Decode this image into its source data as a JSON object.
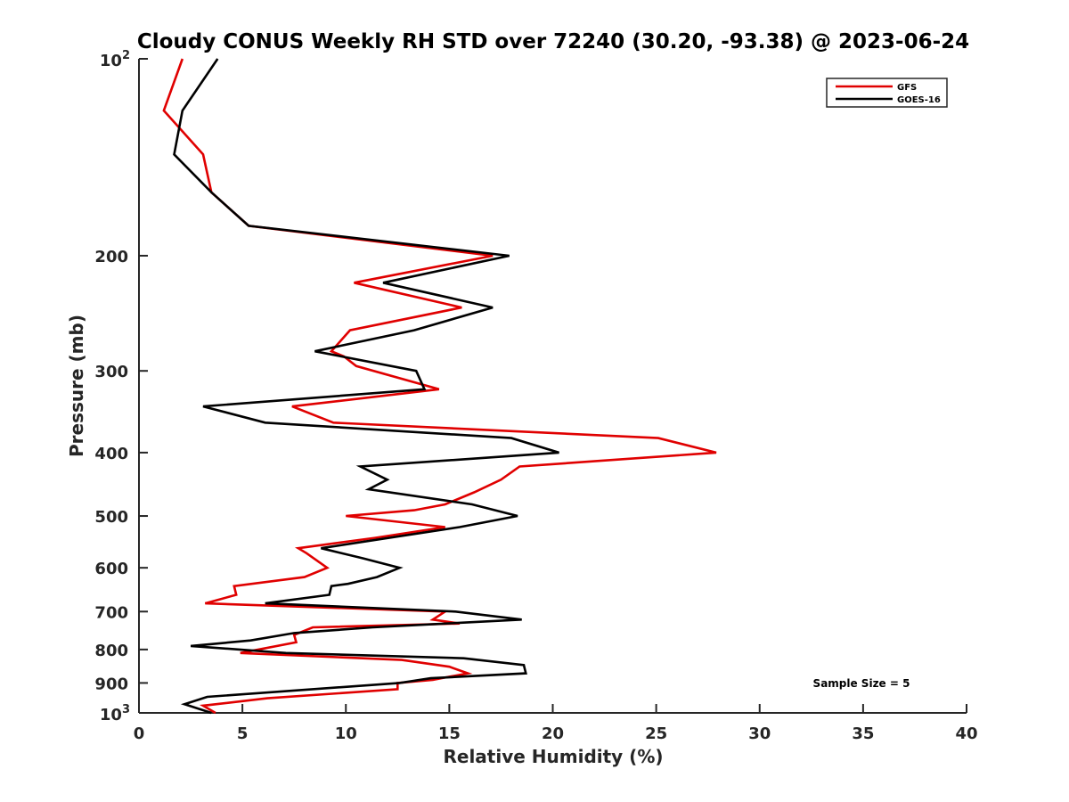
{
  "chart_data": {
    "type": "line",
    "title": "Cloudy CONUS Weekly RH STD over 72240 (30.20, -93.38) @ 2023-06-24",
    "xlabel": "Relative Humidity (%)",
    "ylabel": "Pressure (mb)",
    "xlim": [
      0,
      40
    ],
    "ylim": [
      100,
      1000
    ],
    "yscale": "log",
    "yreversed": true,
    "grid": false,
    "xticks": [
      "0",
      "5",
      "10",
      "15",
      "20",
      "25",
      "30",
      "35",
      "40"
    ],
    "xtick_values": [
      0,
      5,
      10,
      15,
      20,
      25,
      30,
      35,
      40
    ],
    "yticks": [
      {
        "value": 100,
        "base": "10",
        "exp": "2"
      },
      {
        "value": 200,
        "label": "200"
      },
      {
        "value": 300,
        "label": "300"
      },
      {
        "value": 400,
        "label": "400"
      },
      {
        "value": 500,
        "label": "500"
      },
      {
        "value": 600,
        "label": "600"
      },
      {
        "value": 700,
        "label": "700"
      },
      {
        "value": 800,
        "label": "800"
      },
      {
        "value": 900,
        "label": "900"
      },
      {
        "value": 1000,
        "base": "10",
        "exp": "3"
      }
    ],
    "legend_position": "top-right",
    "annotation": "Sample Size = 5",
    "series": [
      {
        "name": "GFS",
        "color": "#e00000",
        "points": [
          [
            2.1,
            100
          ],
          [
            1.2,
            120
          ],
          [
            3.1,
            140
          ],
          [
            3.5,
            160
          ],
          [
            5.3,
            180
          ],
          [
            17.1,
            200
          ],
          [
            10.4,
            220
          ],
          [
            15.6,
            240
          ],
          [
            10.2,
            260
          ],
          [
            9.3,
            280
          ],
          [
            9.9,
            285
          ],
          [
            10.5,
            295
          ],
          [
            14.5,
            320
          ],
          [
            7.4,
            340
          ],
          [
            9.4,
            360
          ],
          [
            25.1,
            380
          ],
          [
            27.9,
            400
          ],
          [
            18.4,
            420
          ],
          [
            17.5,
            440
          ],
          [
            16.2,
            460
          ],
          [
            14.8,
            480
          ],
          [
            13.3,
            490
          ],
          [
            10.0,
            500
          ],
          [
            14.8,
            520
          ],
          [
            11.4,
            540
          ],
          [
            7.7,
            560
          ],
          [
            8.1,
            570
          ],
          [
            9.1,
            600
          ],
          [
            8.0,
            620
          ],
          [
            4.6,
            640
          ],
          [
            4.7,
            660
          ],
          [
            3.2,
            680
          ],
          [
            14.8,
            700
          ],
          [
            14.2,
            720
          ],
          [
            15.5,
            730
          ],
          [
            8.4,
            740
          ],
          [
            7.5,
            760
          ],
          [
            7.6,
            780
          ],
          [
            4.9,
            810
          ],
          [
            12.7,
            830
          ],
          [
            15.0,
            850
          ],
          [
            15.9,
            870
          ],
          [
            14.2,
            890
          ],
          [
            12.5,
            900
          ],
          [
            12.5,
            920
          ],
          [
            6.2,
            950
          ],
          [
            3.1,
            975
          ],
          [
            3.7,
            1000
          ]
        ]
      },
      {
        "name": "GOES-16",
        "color": "#000000",
        "points": [
          [
            3.8,
            100
          ],
          [
            2.1,
            120
          ],
          [
            1.7,
            140
          ],
          [
            3.5,
            160
          ],
          [
            5.3,
            180
          ],
          [
            17.9,
            200
          ],
          [
            11.8,
            220
          ],
          [
            17.1,
            240
          ],
          [
            13.3,
            260
          ],
          [
            8.5,
            280
          ],
          [
            13.4,
            300
          ],
          [
            13.8,
            320
          ],
          [
            3.1,
            340
          ],
          [
            6.1,
            360
          ],
          [
            18.0,
            380
          ],
          [
            20.3,
            400
          ],
          [
            10.7,
            420
          ],
          [
            12.0,
            440
          ],
          [
            11.1,
            455
          ],
          [
            16.1,
            480
          ],
          [
            18.3,
            500
          ],
          [
            15.5,
            520
          ],
          [
            8.8,
            560
          ],
          [
            10.8,
            580
          ],
          [
            12.6,
            600
          ],
          [
            11.5,
            620
          ],
          [
            10.1,
            635
          ],
          [
            9.3,
            640
          ],
          [
            9.2,
            660
          ],
          [
            6.1,
            680
          ],
          [
            15.3,
            700
          ],
          [
            18.5,
            720
          ],
          [
            11.3,
            740
          ],
          [
            7.5,
            755
          ],
          [
            5.4,
            775
          ],
          [
            2.5,
            790
          ],
          [
            7.1,
            810
          ],
          [
            15.7,
            825
          ],
          [
            18.6,
            845
          ],
          [
            18.7,
            870
          ],
          [
            14.1,
            885
          ],
          [
            12.6,
            900
          ],
          [
            3.3,
            945
          ],
          [
            2.2,
            970
          ],
          [
            3.5,
            1000
          ]
        ]
      }
    ]
  }
}
